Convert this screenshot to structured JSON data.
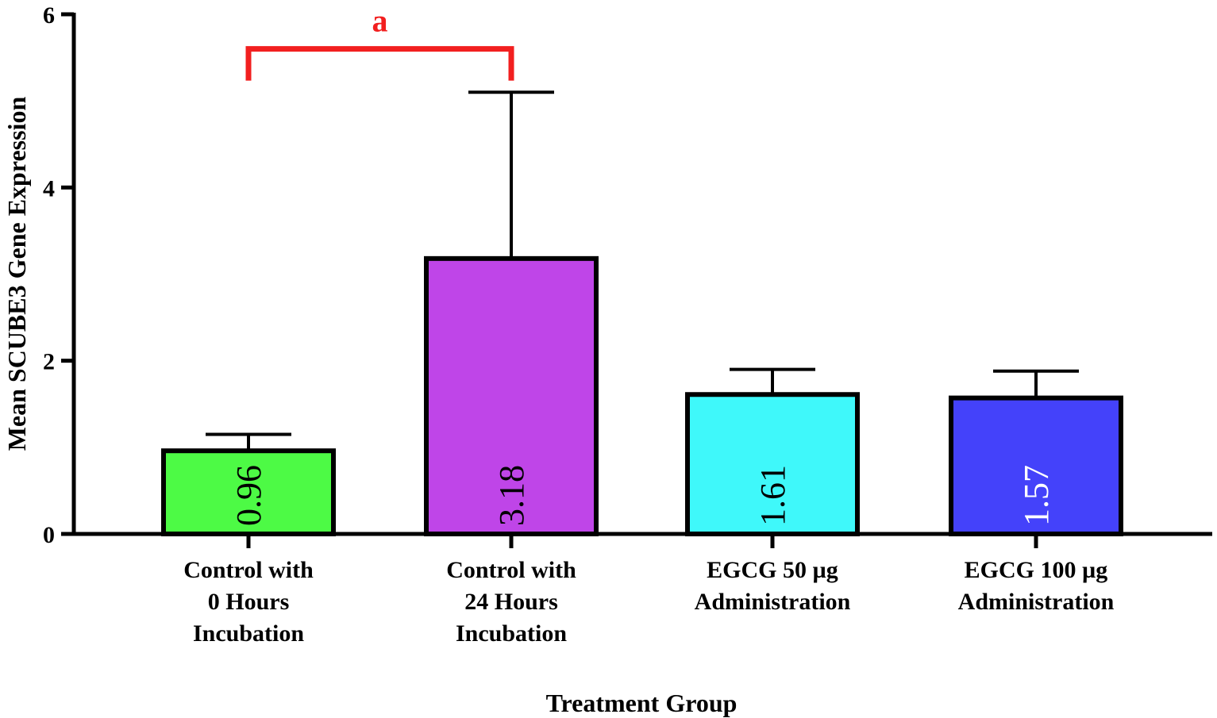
{
  "chart_data": {
    "type": "bar",
    "title": "",
    "xlabel": "Treatment Group",
    "ylabel": "Mean SCUBE3 Gene Expression",
    "ylim": [
      0,
      6
    ],
    "yticks": [
      0,
      2,
      4,
      6
    ],
    "yticks_text": [
      "0",
      "2",
      "4",
      "6"
    ],
    "grid": false,
    "categories": [
      [
        "Control with",
        "0 Hours",
        "Incubation"
      ],
      [
        "Control with",
        "24 Hours",
        "Incubation"
      ],
      [
        "EGCG 50 µg",
        "Administration"
      ],
      [
        "EGCG 100 µg",
        "Administration"
      ]
    ],
    "values": [
      0.96,
      3.18,
      1.61,
      1.57
    ],
    "value_labels": [
      "0.96",
      "3.18",
      "1.61",
      "1.57"
    ],
    "error_upper": [
      1.15,
      5.1,
      1.9,
      1.88
    ],
    "colors": [
      "#4dfa45",
      "#bf45e8",
      "#3ff8fa",
      "#4442fa"
    ],
    "value_label_colors": [
      "#000000",
      "#000000",
      "#000000",
      "#ffffff"
    ],
    "significance": [
      {
        "from": 0,
        "to": 1,
        "label": "a",
        "color": "#f21f1f",
        "y": 5.6
      }
    ]
  }
}
